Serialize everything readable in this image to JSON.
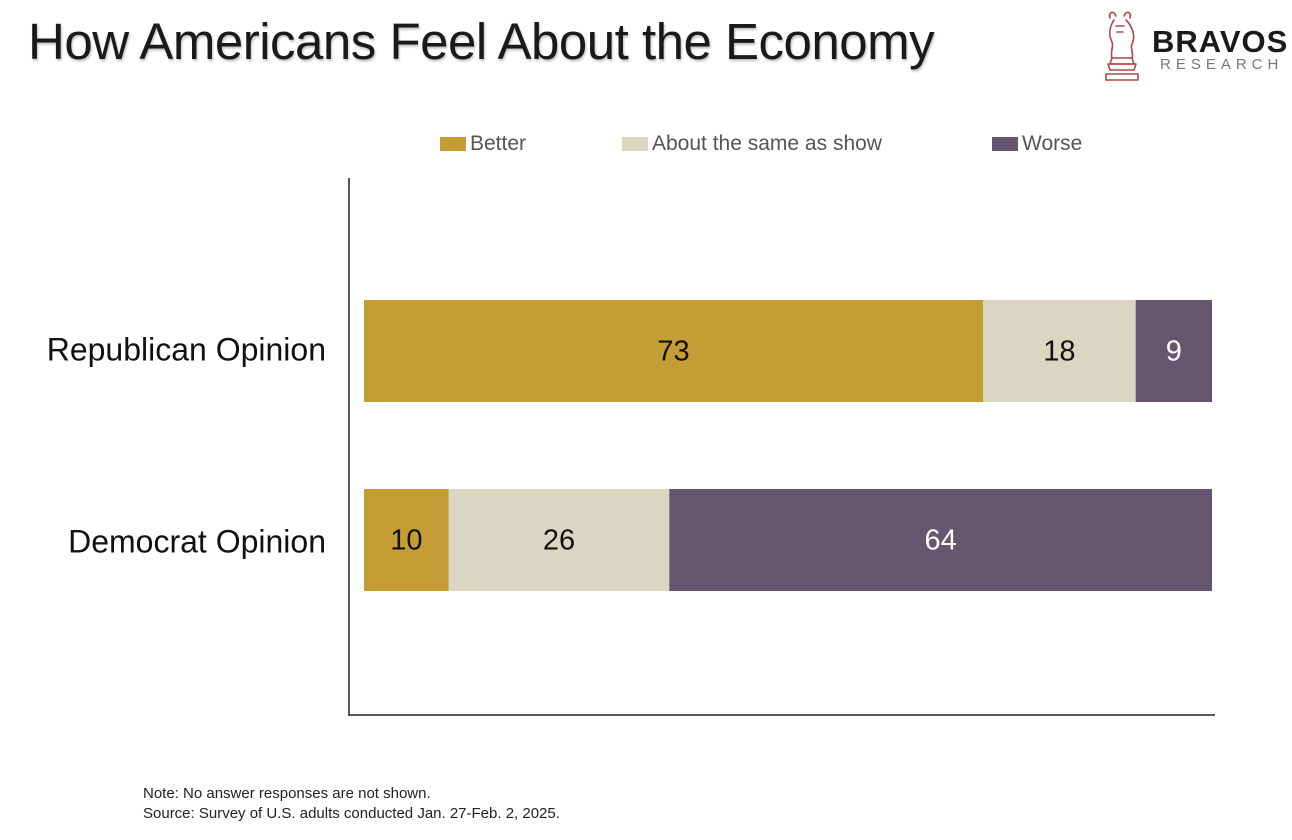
{
  "title": "How Americans Feel About the Economy",
  "logo": {
    "brand": "BRAVOS",
    "sub": "RESEARCH",
    "icon": "chess-knight-bull-icon"
  },
  "chart_data": {
    "type": "bar",
    "orientation": "horizontal",
    "stacked": true,
    "title": "How Americans Feel About the Economy",
    "categories": [
      "Republican Opinion",
      "Democrat Opinion"
    ],
    "series": [
      {
        "name": "Better",
        "color": "#c49e35",
        "label_color": "#111111",
        "values": [
          73,
          10
        ]
      },
      {
        "name": "About the same as show",
        "color": "#d9d6c1",
        "label_color": "#111111",
        "values": [
          18,
          26
        ]
      },
      {
        "name": "Worse",
        "color": "#66566f",
        "label_color": "#ffffff",
        "values": [
          9,
          64
        ]
      }
    ],
    "xlim": [
      0,
      100
    ],
    "grid": false,
    "legend_position": "top"
  },
  "notes": [
    "Note: No answer responses are not shown.",
    "Source: Survey of U.S. adults conducted Jan. 27-Feb. 2, 2025."
  ]
}
